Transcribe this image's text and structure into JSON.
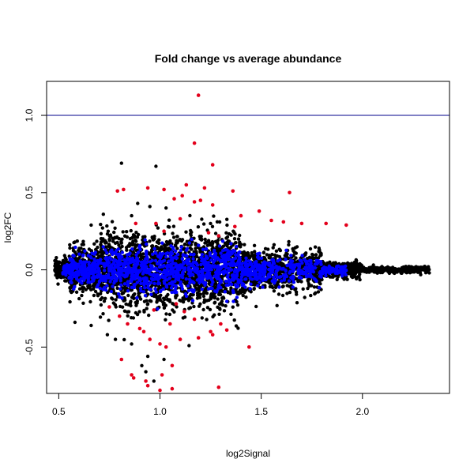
{
  "chart_data": {
    "type": "scatter",
    "title": "Fold change vs average abundance",
    "xlabel": "log2Signal",
    "ylabel": "log2FC",
    "xlim": [
      0.44,
      2.43
    ],
    "ylim": [
      -0.8,
      1.22
    ],
    "x_ticks": [
      "0.5",
      "1.0",
      "1.5",
      "2.0"
    ],
    "y_ticks": [
      "-0.5",
      "0.0",
      "0.5",
      "1.0"
    ],
    "hline": {
      "y": 1.0,
      "color": "#00008B"
    },
    "colors": {
      "background": "#000000",
      "highlight_blue": "#0000FF",
      "significant_red": "#E3001B"
    },
    "highlight_points": [
      [
        1.19,
        1.13
      ],
      [
        1.17,
        0.82
      ],
      [
        1.26,
        0.68
      ],
      [
        1.13,
        0.55
      ],
      [
        1.22,
        0.53
      ],
      [
        1.02,
        0.52
      ],
      [
        0.82,
        0.52
      ],
      [
        0.79,
        0.51
      ],
      [
        1.11,
        0.48
      ],
      [
        0.94,
        0.53
      ],
      [
        1.64,
        0.5
      ],
      [
        1.36,
        0.51
      ],
      [
        1.2,
        0.45
      ],
      [
        1.07,
        0.46
      ],
      [
        1.17,
        0.44
      ],
      [
        1.26,
        0.42
      ],
      [
        1.49,
        0.38
      ],
      [
        1.4,
        0.35
      ],
      [
        1.55,
        0.32
      ],
      [
        1.7,
        0.3
      ],
      [
        1.82,
        0.3
      ],
      [
        1.92,
        0.29
      ],
      [
        1.37,
        0.28
      ],
      [
        0.98,
        0.3
      ],
      [
        1.02,
        0.25
      ],
      [
        1.29,
        0.22
      ],
      [
        1.61,
        0.31
      ],
      [
        1.1,
        0.33
      ],
      [
        0.88,
        0.3
      ],
      [
        1.24,
        0.24
      ],
      [
        0.81,
        -0.58
      ],
      [
        0.86,
        -0.68
      ],
      [
        0.87,
        -0.7
      ],
      [
        0.93,
        -0.72
      ],
      [
        0.94,
        -0.75
      ],
      [
        1.0,
        -0.78
      ],
      [
        1.06,
        -0.77
      ],
      [
        1.29,
        -0.76
      ],
      [
        1.01,
        -0.68
      ],
      [
        1.06,
        -0.62
      ],
      [
        0.95,
        -0.45
      ],
      [
        1.03,
        -0.5
      ],
      [
        1.0,
        -0.48
      ],
      [
        1.1,
        -0.45
      ],
      [
        1.19,
        -0.44
      ],
      [
        1.25,
        -0.4
      ],
      [
        1.26,
        -0.42
      ],
      [
        1.33,
        -0.39
      ],
      [
        1.44,
        -0.5
      ],
      [
        0.9,
        -0.38
      ],
      [
        0.84,
        -0.35
      ],
      [
        0.8,
        -0.3
      ],
      [
        1.12,
        -0.27
      ],
      [
        1.17,
        -0.32
      ],
      [
        0.97,
        -0.26
      ],
      [
        0.75,
        -0.24
      ],
      [
        1.05,
        -0.35
      ],
      [
        1.3,
        -0.35
      ],
      [
        0.92,
        -0.4
      ],
      [
        1.08,
        -0.22
      ]
    ],
    "highlight_black_outliers": [
      [
        0.81,
        0.69
      ],
      [
        0.98,
        0.67
      ],
      [
        0.89,
        0.43
      ],
      [
        0.95,
        0.41
      ],
      [
        1.03,
        0.4
      ],
      [
        0.86,
        0.35
      ],
      [
        0.72,
        0.36
      ],
      [
        0.66,
        0.29
      ],
      [
        0.93,
        -0.66
      ],
      [
        0.97,
        -0.72
      ],
      [
        0.91,
        -0.62
      ],
      [
        0.78,
        -0.45
      ],
      [
        0.86,
        -0.48
      ],
      [
        0.74,
        -0.42
      ],
      [
        0.66,
        -0.36
      ],
      [
        0.58,
        -0.34
      ],
      [
        1.02,
        -0.58
      ],
      [
        0.94,
        -0.56
      ]
    ],
    "grid": false,
    "legend": "none"
  }
}
